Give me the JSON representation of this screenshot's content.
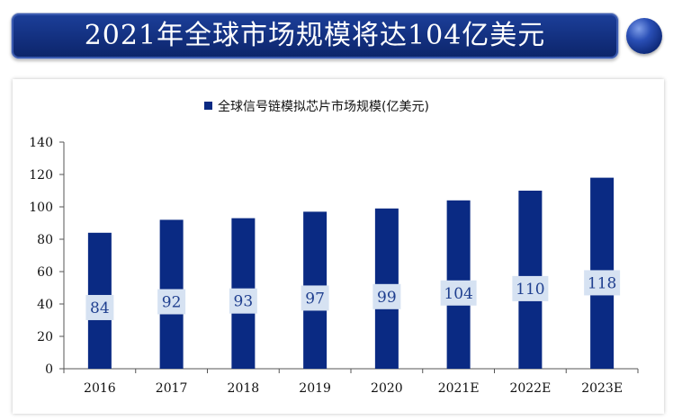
{
  "banner": {
    "title": "2021年全球市场规模将达104亿美元"
  },
  "chart_data": {
    "type": "bar",
    "title": "",
    "xlabel": "",
    "ylabel": "",
    "legend": {
      "position": "top-center"
    },
    "categories": [
      "2016",
      "2017",
      "2018",
      "2019",
      "2020",
      "2021E",
      "2022E",
      "2023E"
    ],
    "series": [
      {
        "name": "全球信号链模拟芯片市场规模(亿美元)",
        "values": [
          84,
          92,
          93,
          97,
          99,
          104,
          110,
          118
        ],
        "color": "#0a2a83"
      }
    ],
    "ylim": [
      0,
      140
    ],
    "yticks": [
      0,
      20,
      40,
      60,
      80,
      100,
      120,
      140
    ],
    "grid": false,
    "label_bg": "#d6e2f2"
  }
}
